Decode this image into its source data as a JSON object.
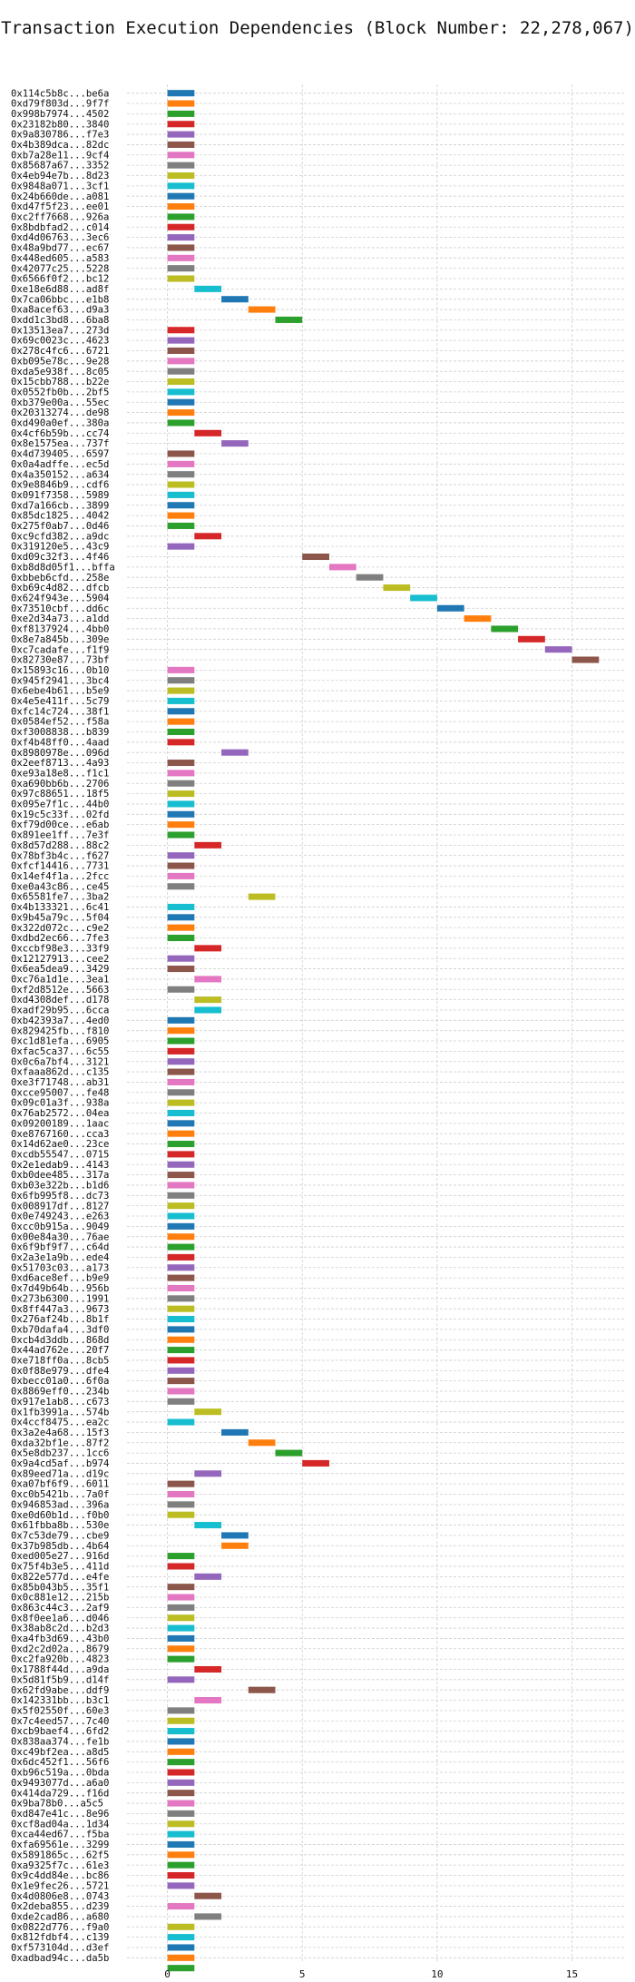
{
  "chart_data": {
    "type": "bar",
    "orientation": "horizontal",
    "title": "Transaction Execution Dependencies (Block Number: 22,278,067)",
    "xlabel": "",
    "ylabel": "",
    "xlim": [
      -1.5,
      17
    ],
    "x_ticks": [
      0,
      5,
      10,
      15
    ],
    "grid": true,
    "palette": [
      "#1f77b4",
      "#ff7f0e",
      "#2ca02c",
      "#d62728",
      "#9467bd",
      "#8c564b",
      "#e377c2",
      "#7f7f7f",
      "#bcbd22",
      "#17becf"
    ],
    "transactions": [
      "0x114c5b8c...be6a",
      "0xd79f803d...9f7f",
      "0x998b7974...4502",
      "0x23182b80...3840",
      "0x9a830786...f7e3",
      "0x4b389dca...82dc",
      "0xb7a28e11...9cf4",
      "0x85687a67...3352",
      "0x4eb94e7b...8d23",
      "0x9848a071...3cf1",
      "0x24b660de...a081",
      "0xd47f5f23...ee01",
      "0xc2ff7668...926a",
      "0x8bdbfad2...c014",
      "0xd4d06763...3ec6",
      "0x48a9bd77...ec67",
      "0x448ed605...a583",
      "0x42077c25...5228",
      "0x6566f0f2...bc12",
      "0xe18e6d88...ad8f",
      "0x7ca06bbc...e1b8",
      "0xa8acef63...d9a3",
      "0xdd1c3bd8...6ba8",
      "0x13513ea7...273d",
      "0x69c0023c...4623",
      "0x278c4fc6...6721",
      "0xb095e78c...9e28",
      "0xda5e938f...8c05",
      "0x15cbb788...b22e",
      "0x0552fb0b...2bf5",
      "0xb379e00a...55ec",
      "0x20313274...de98",
      "0xd490a0ef...380a",
      "0x4cf6b59b...cc74",
      "0x8e1575ea...737f",
      "0x4d739405...6597",
      "0x0a4adffe...ec5d",
      "0x4a350152...a634",
      "0x9e8846b9...cdf6",
      "0x091f7358...5989",
      "0xd7a166cb...3899",
      "0x85dc1825...4042",
      "0x275f0ab7...0d46",
      "0xc9cfd382...a9dc",
      "0x319120e5...43c9",
      "0xd09c32f3...4f46",
      "0xb8d8d05f1...bffa",
      "0xbbeb6cfd...258e",
      "0xb69c4d82...dfcb",
      "0x624f943e...5904",
      "0x73510cbf...dd6c",
      "0xe2d34a73...a1dd",
      "0xf8137924...4bb0",
      "0x8e7a845b...309e",
      "0xc7cadafe...f1f9",
      "0x82730e87...73bf",
      "0x15893c16...0b10",
      "0x945f2941...3bc4",
      "0x6ebe4b61...b5e9",
      "0x4e5e411f...5c79",
      "0xfc14c724...38f1",
      "0x0584ef52...f58a",
      "0xf3008838...b839",
      "0xf4b48ff0...4aad",
      "0x8980978e...096d",
      "0x2eef8713...4a93",
      "0xe93a18e8...f1c1",
      "0xa690bb6b...2706",
      "0x97c88651...18f5",
      "0x095e7f1c...44b0",
      "0x19c5c33f...02fd",
      "0xf79d00ce...e6ab",
      "0x891ee1ff...7e3f",
      "0x8d57d288...88c2",
      "0x78bf3b4c...f627",
      "0xfcf14416...7731",
      "0x14ef4f1a...2fcc",
      "0xe0a43c86...ce45",
      "0x65581fe7...3ba2",
      "0x4b133321...6c41",
      "0x9b45a79c...5f04",
      "0x322d072c...c9e2",
      "0xdbd2ec66...7fe3",
      "0xccbf98e3...33f9",
      "0x12127913...cee2",
      "0x6ea5dea9...3429",
      "0xc76a1d1e...3ea1",
      "0xf2d8512e...5663",
      "0xd4308def...d178",
      "0xadf29b95...6cca",
      "0xb42393a7...4ed0",
      "0x829425fb...f810",
      "0xc1d81efa...6905",
      "0xfac5ca37...6c55",
      "0x0c6a7bf4...3121",
      "0xfaaa862d...c135",
      "0xe3f71748...ab31",
      "0xcce95007...fe48",
      "0x09c01a3f...938a",
      "0x76ab2572...04ea",
      "0x09200189...1aac",
      "0xe8767160...cca3",
      "0x14d62ae0...23ce",
      "0xcdb55547...0715",
      "0x2e1edab9...4143",
      "0xb0dee485...317a",
      "0xb03e322b...b1d6",
      "0x6fb995f8...dc73",
      "0x008917df...8127",
      "0x0e749243...e263",
      "0xcc0b915a...9049",
      "0x00e84a30...76ae",
      "0x6f9bf9f7...c64d",
      "0x2a3e1a9b...ede4",
      "0x51703c03...a173",
      "0xd6ace8ef...b9e9",
      "0x7d49b64b...956b",
      "0x273b6300...1991",
      "0x8ff447a3...9673",
      "0x276af24b...8b1f",
      "0xb70dafa4...3df0",
      "0xcb4d3ddb...868d",
      "0x44ad762e...20f7",
      "0xe718ff0a...8cb5",
      "0x0f88e979...dfe4",
      "0xbecc01a0...6f0a",
      "0x8869eff0...234b",
      "0x917e1ab8...c673",
      "0x1fb3991a...574b",
      "0x4ccf8475...ea2c",
      "0x3a2e4a68...15f3",
      "0xda32bf1e...87f2",
      "0x5e8db237...1cc6",
      "0x9a4cd5af...b974",
      "0x89eed71a...d19c",
      "0xa07bf6f9...6011",
      "0xc0b5421b...7a0f",
      "0x946853ad...396a",
      "0xe0d60b1d...f0b0",
      "0x61fbba8b...530e",
      "0x7c53de79...cbe9",
      "0x37b985db...4b64",
      "0xed005e27...916d",
      "0x75f4b3e5...411d",
      "0x822e577d...e4fe",
      "0x85b043b5...35f1",
      "0x0c881e12...215b",
      "0x863c44c3...2af9",
      "0x8f0ee1a6...d046",
      "0x38ab8c2d...b2d3",
      "0xa4fb3d69...43b0",
      "0xd2c2d02a...8679",
      "0xc2fa920b...4823",
      "0x1788f44d...a9da",
      "0x5d81f5b9...d14f",
      "0x62fd9abe...ddf9",
      "0x142331bb...b3c1",
      "0x5f02550f...60e3",
      "0x7c4eed57...7c40",
      "0xcb9baef4...6fd2",
      "0x838aa374...fe1b",
      "0xc49bf2ea...a8d5",
      "0x6dc452f1...56f6",
      "0xb96c519a...0bda",
      "0x9493077d...a6a0",
      "0x414da729...f16d",
      "0x9ba78b0...a5c5",
      "0xd847e41c...8e96",
      "0xcf8ad04a...1d34",
      "0xca44ed67...f5ba",
      "0xfa69561e...3299",
      "0x5891865c...62f5",
      "0xa9325f7c...61e3",
      "0x9c4dd84e...bc86",
      "0x1e9fec26...5721",
      "0x4d0806e8...0743",
      "0x2deba855...d239",
      "0xde2cad86...a680",
      "0x0822d776...f9a0",
      "0x812fdbf4...c139",
      "0xf573104d...d3ef",
      "0xadbad94c...da5b"
    ],
    "values": [
      1,
      1,
      1,
      1,
      1,
      1,
      1,
      1,
      1,
      1,
      1,
      1,
      1,
      1,
      1,
      1,
      1,
      1,
      1,
      2,
      3,
      4,
      5,
      1,
      1,
      1,
      1,
      1,
      1,
      1,
      1,
      1,
      1,
      2,
      3,
      1,
      1,
      1,
      1,
      1,
      1,
      1,
      1,
      2,
      1,
      6,
      7,
      8,
      9,
      10,
      11,
      12,
      13,
      14,
      15,
      16,
      1,
      1,
      1,
      1,
      1,
      1,
      1,
      1,
      3,
      1,
      1,
      1,
      1,
      1,
      1,
      1,
      1,
      2,
      1,
      1,
      1,
      1,
      4,
      1,
      1,
      1,
      1,
      2,
      1,
      1,
      2,
      1,
      2,
      2,
      1,
      1,
      1,
      1,
      1,
      1,
      1,
      1,
      1,
      1,
      1,
      1,
      1,
      1,
      1,
      1,
      1,
      1,
      1,
      1,
      1,
      1,
      1,
      1,
      1,
      1,
      1,
      1,
      1,
      1,
      1,
      1,
      1,
      1,
      1,
      1,
      1,
      1,
      2,
      1,
      3,
      4,
      5,
      6,
      2,
      1,
      1,
      1,
      1,
      2,
      3,
      3,
      1,
      1,
      2,
      1,
      1,
      1,
      1,
      1,
      1,
      1,
      1,
      2,
      1,
      4,
      2,
      1,
      1,
      1,
      1,
      1,
      1,
      1,
      1,
      1,
      1,
      1,
      1,
      1,
      1,
      1,
      1,
      1,
      1,
      2,
      1,
      2,
      1,
      1,
      1,
      1,
      1
    ]
  }
}
